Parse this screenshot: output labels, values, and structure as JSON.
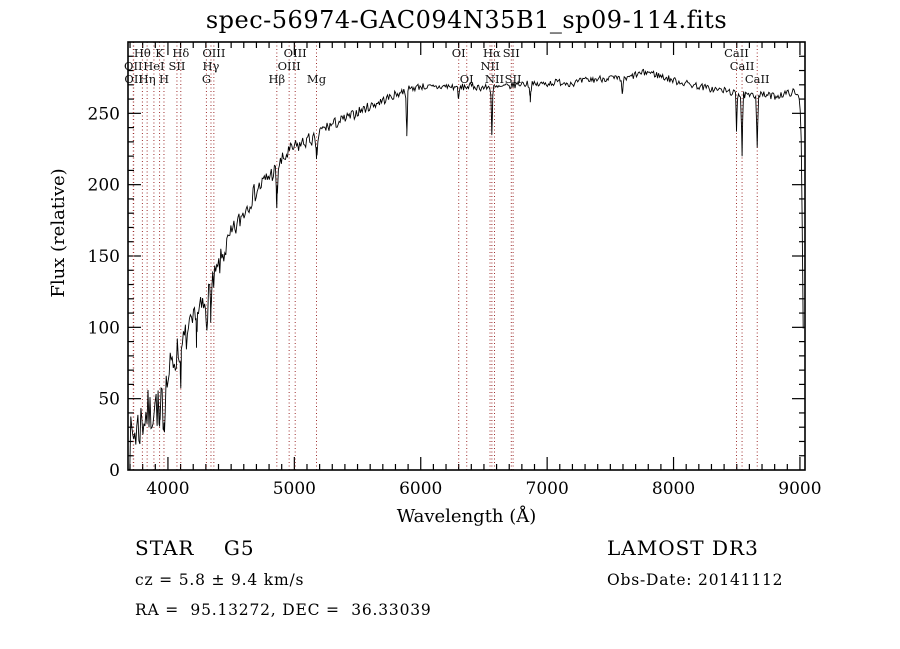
{
  "title": "spec-56974-GAC094N35B1_sp09-114.fits",
  "annotations": {
    "class_line": "STAR    G5",
    "cz_line": "cz = 5.8 ± 9.4 km/s",
    "radec_line": "RA =  95.13272, DEC =  36.33039",
    "survey": "LAMOST DR3",
    "obsdate": "Obs-Date: 20141112"
  },
  "chart_data": {
    "type": "line",
    "title": "spec-56974-GAC094N35B1_sp09-114.fits",
    "xlabel": "Wavelength (Å)",
    "ylabel": "Flux (relative)",
    "xlim": [
      3684,
      9040
    ],
    "ylim": [
      0,
      300
    ],
    "xticks": [
      4000,
      5000,
      6000,
      7000,
      8000,
      9000
    ],
    "yticks": [
      0,
      50,
      100,
      150,
      200,
      250
    ],
    "x_minor_step": 100,
    "y_minor_step": 10,
    "grid": false,
    "legend": "none",
    "line_color": "#000000",
    "marker_line_color": "#9e2f2f",
    "continuum_format": [
      "wavelength_angstrom",
      "flux_relative"
    ],
    "continuum": [
      [
        3690,
        8
      ],
      [
        3715,
        22
      ],
      [
        3740,
        28
      ],
      [
        3770,
        30
      ],
      [
        3800,
        36
      ],
      [
        3830,
        40
      ],
      [
        3860,
        38
      ],
      [
        3890,
        46
      ],
      [
        3920,
        44
      ],
      [
        3950,
        46
      ],
      [
        3980,
        56
      ],
      [
        4010,
        68
      ],
      [
        4050,
        78
      ],
      [
        4100,
        86
      ],
      [
        4150,
        94
      ],
      [
        4200,
        102
      ],
      [
        4250,
        110
      ],
      [
        4300,
        118
      ],
      [
        4350,
        129
      ],
      [
        4400,
        142
      ],
      [
        4450,
        154
      ],
      [
        4500,
        164
      ],
      [
        4550,
        172
      ],
      [
        4600,
        181
      ],
      [
        4650,
        189
      ],
      [
        4700,
        196
      ],
      [
        4750,
        201
      ],
      [
        4800,
        206
      ],
      [
        4850,
        210
      ],
      [
        4900,
        216
      ],
      [
        4950,
        222
      ],
      [
        5000,
        226
      ],
      [
        5050,
        228
      ],
      [
        5100,
        231
      ],
      [
        5150,
        232
      ],
      [
        5200,
        237
      ],
      [
        5250,
        240
      ],
      [
        5300,
        242
      ],
      [
        5350,
        244
      ],
      [
        5400,
        246
      ],
      [
        5450,
        248
      ],
      [
        5500,
        251
      ],
      [
        5550,
        253
      ],
      [
        5600,
        255
      ],
      [
        5650,
        257
      ],
      [
        5700,
        259
      ],
      [
        5750,
        261
      ],
      [
        5800,
        263
      ],
      [
        5850,
        265
      ],
      [
        5900,
        267
      ],
      [
        5950,
        268
      ],
      [
        6000,
        269
      ],
      [
        6100,
        268
      ],
      [
        6200,
        269
      ],
      [
        6300,
        268
      ],
      [
        6400,
        269
      ],
      [
        6500,
        268
      ],
      [
        6600,
        268
      ],
      [
        6700,
        269
      ],
      [
        6800,
        271
      ],
      [
        6900,
        270
      ],
      [
        7000,
        271
      ],
      [
        7100,
        272
      ],
      [
        7200,
        271
      ],
      [
        7300,
        273
      ],
      [
        7400,
        274
      ],
      [
        7500,
        275
      ],
      [
        7600,
        273
      ],
      [
        7700,
        277
      ],
      [
        7800,
        279
      ],
      [
        7900,
        276
      ],
      [
        8000,
        273
      ],
      [
        8100,
        271
      ],
      [
        8200,
        269
      ],
      [
        8300,
        267
      ],
      [
        8400,
        266
      ],
      [
        8500,
        264
      ],
      [
        8600,
        262
      ],
      [
        8700,
        263
      ],
      [
        8800,
        262
      ],
      [
        8900,
        264
      ],
      [
        8950,
        265
      ],
      [
        9000,
        260
      ],
      [
        9012,
        225
      ],
      [
        9022,
        140
      ],
      [
        9030,
        62
      ]
    ],
    "absorption_feature_format": [
      "wavelength_angstrom",
      "depth",
      "sigma_angstrom"
    ],
    "absorption_features": [
      [
        3933.7,
        20,
        5
      ],
      [
        3968.5,
        18,
        5
      ],
      [
        4101.7,
        18,
        5
      ],
      [
        4226.7,
        10,
        4
      ],
      [
        4304.4,
        14,
        8
      ],
      [
        4340.5,
        16,
        4.5
      ],
      [
        4861.3,
        26,
        4.5
      ],
      [
        5175.3,
        14,
        8
      ],
      [
        5889.9,
        30,
        4
      ],
      [
        6300.3,
        9,
        3.5
      ],
      [
        6562.8,
        32,
        4
      ],
      [
        6867,
        10,
        4
      ],
      [
        7594,
        9,
        5
      ],
      [
        8498,
        26,
        3.5
      ],
      [
        8542,
        42,
        3.5
      ],
      [
        8662,
        38,
        3.5
      ]
    ],
    "noise": {
      "seed": 7,
      "amplitude_anchor_format": [
        "wavelength_angstrom",
        "amplitude_flux"
      ],
      "amplitude_anchors": [
        [
          3690,
          22
        ],
        [
          3900,
          16
        ],
        [
          4100,
          12
        ],
        [
          4500,
          8
        ],
        [
          5000,
          5.5
        ],
        [
          5500,
          3.5
        ],
        [
          6000,
          2.5
        ],
        [
          9030,
          2.5
        ]
      ]
    },
    "spectral_line_format": [
      "label",
      "wavelength_angstrom",
      "label_row"
    ],
    "spectral_lines": [
      [
        "OII",
        3726.0,
        2
      ],
      [
        "OII",
        3728.8,
        3
      ],
      [
        "Hθ",
        3797.9,
        1
      ],
      [
        "Hη",
        3835.4,
        3
      ],
      [
        "HeI",
        3889.0,
        2
      ],
      [
        "K",
        3933.7,
        1
      ],
      [
        "H",
        3968.5,
        3
      ],
      [
        "SII",
        4071.2,
        2
      ],
      [
        "Hδ",
        4101.7,
        1
      ],
      [
        "G",
        4304.4,
        3
      ],
      [
        "Hγ",
        4340.5,
        2
      ],
      [
        "OIII",
        4363.2,
        1
      ],
      [
        "Hβ",
        4861.3,
        3
      ],
      [
        "OIII",
        4958.9,
        2
      ],
      [
        "OIII",
        5006.8,
        1
      ],
      [
        "Mg",
        5175.3,
        3
      ],
      [
        "OI",
        6300.3,
        1
      ],
      [
        "OI",
        6363.8,
        3
      ],
      [
        "NII",
        6548.1,
        2
      ],
      [
        "Hα",
        6562.8,
        1
      ],
      [
        "NII",
        6583.5,
        3
      ],
      [
        "SII",
        6716.4,
        1
      ],
      [
        "SII",
        6730.8,
        3
      ],
      [
        "CaII",
        8498.0,
        1
      ],
      [
        "CaII",
        8542.1,
        2
      ],
      [
        "CaII",
        8662.1,
        3
      ]
    ]
  }
}
